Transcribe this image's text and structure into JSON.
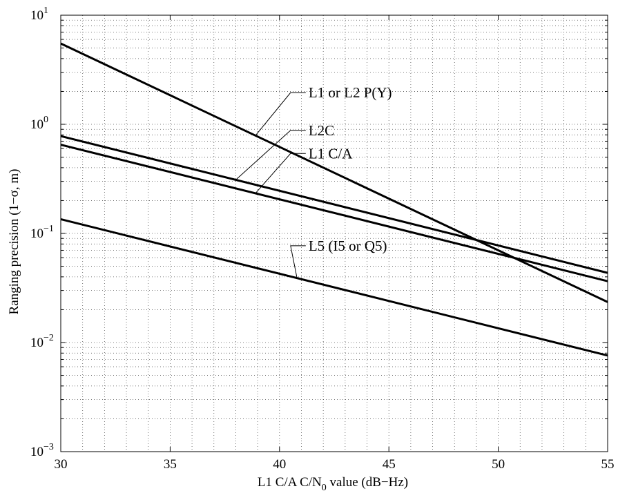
{
  "chart_data": {
    "type": "line",
    "title": "",
    "xlabel_main": "L1 C/A C/N",
    "xlabel_sub": "0",
    "xlabel_tail": " value (dB−Hz)",
    "ylabel": "Ranging precision (1−σ, m)",
    "xlim": [
      30,
      55
    ],
    "ylim": [
      0.001,
      10
    ],
    "yscale": "log",
    "grid": true,
    "x_ticks": [
      30,
      35,
      40,
      45,
      50,
      55
    ],
    "y_ticks": [
      {
        "base": "10",
        "exp": "1",
        "value": 10
      },
      {
        "base": "10",
        "exp": "0",
        "value": 1
      },
      {
        "base": "10",
        "exp": "−1",
        "value": 0.1
      },
      {
        "base": "10",
        "exp": "−2",
        "value": 0.01
      },
      {
        "base": "10",
        "exp": "−3",
        "value": 0.001
      }
    ],
    "series": [
      {
        "name": "L1 or L2 P(Y)",
        "x": [
          30,
          55
        ],
        "y": [
          5.5,
          0.0235
        ]
      },
      {
        "name": "L2C",
        "x": [
          30,
          55
        ],
        "y": [
          0.78,
          0.0435
        ]
      },
      {
        "name": "L1 C/A",
        "x": [
          30,
          55
        ],
        "y": [
          0.65,
          0.0365
        ]
      },
      {
        "name": "L5 (I5 or Q5)",
        "x": [
          30,
          55
        ],
        "y": [
          0.135,
          0.0076
        ]
      }
    ],
    "annotations": [
      {
        "series": "L1 or L2 P(Y)",
        "text": "L1 or L2 P(Y)",
        "point_x": 38.9,
        "label_x": 41.2,
        "label_y": 1.95
      },
      {
        "series": "L2C",
        "text": "L2C",
        "point_x": 38.0,
        "label_x": 41.2,
        "label_y": 0.88
      },
      {
        "series": "L1 C/A",
        "text": "L1 C/A",
        "point_x": 38.9,
        "label_x": 41.2,
        "label_y": 0.54
      },
      {
        "series": "L5 (I5 or Q5)",
        "text": "L5 (I5 or Q5)",
        "point_x": 40.8,
        "label_x": 41.2,
        "label_y": 0.077
      }
    ]
  }
}
